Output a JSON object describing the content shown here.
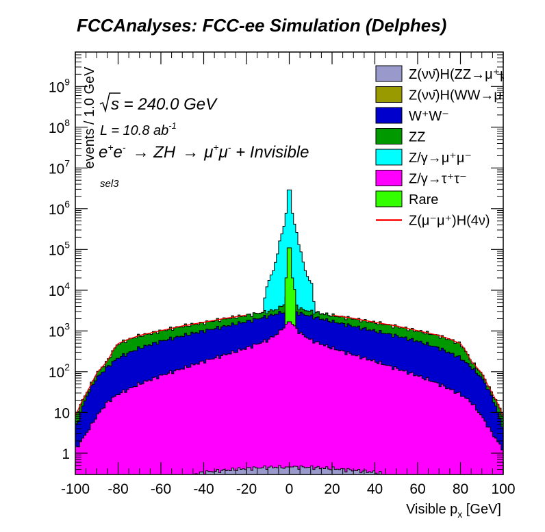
{
  "chart_data": {
    "type": "area",
    "title": "FCCAnalyses: FCC-ee Simulation (Delphes)",
    "xlabel_main": "Visible p",
    "xlabel_sub": "x",
    "xlabel_unit": " [GeV]",
    "ylabel": "events / 1.0 GeV",
    "xlim": [
      -100,
      100
    ],
    "ylim": [
      0.3,
      7000000000
    ],
    "y_scale": "log",
    "x_ticks": [
      "-100",
      "-80",
      "-60",
      "-40",
      "-20",
      "0",
      "20",
      "40",
      "60",
      "80",
      "100"
    ],
    "y_ticks": [
      {
        "value": 1,
        "base": "1",
        "exp": ""
      },
      {
        "value": 10,
        "base": "10",
        "exp": ""
      },
      {
        "value": 100,
        "base": "10",
        "exp": "2"
      },
      {
        "value": 1000,
        "base": "10",
        "exp": "3"
      },
      {
        "value": 10000,
        "base": "10",
        "exp": "4"
      },
      {
        "value": 100000,
        "base": "10",
        "exp": "5"
      },
      {
        "value": 1000000,
        "base": "10",
        "exp": "6"
      },
      {
        "value": 10000000,
        "base": "10",
        "exp": "7"
      },
      {
        "value": 100000000,
        "base": "10",
        "exp": "8"
      },
      {
        "value": 1000000000,
        "base": "10",
        "exp": "9"
      }
    ],
    "annotations": {
      "sqrt_s": {
        "sym": "s",
        "rest": " = 240.0 GeV"
      },
      "lumi": {
        "pre": "L = 10.8 ab",
        "exp": "-1"
      },
      "process": {
        "e1": "e",
        "e1s": "+",
        "e2": "e",
        "e2s": "-",
        "a1": "→ ZH",
        "a2": "→",
        "m1": "μ",
        "m1s": "+",
        "m2": "μ",
        "m2s": "-",
        "tail": " + Invisible"
      },
      "selection": "sel3"
    },
    "legend": {
      "placement": "top-right",
      "entries": [
        {
          "label": "Z(νν̄)H(ZZ→μ⁺μ⁻ν⁺ν",
          "color": "#9999cc",
          "kind": "fill"
        },
        {
          "label": "Z(νν̄)H(WW→μ⁺νμ",
          "color": "#999900",
          "kind": "fill"
        },
        {
          "label": "W⁺W⁻",
          "color": "#0000cc",
          "kind": "fill"
        },
        {
          "label": "ZZ",
          "color": "#009900",
          "kind": "fill"
        },
        {
          "label": "Z/γ→μ⁺μ⁻",
          "color": "#00ffff",
          "kind": "fill"
        },
        {
          "label": "Z/γ→τ⁺τ⁻",
          "color": "#ff00ff",
          "kind": "fill"
        },
        {
          "label": "Rare",
          "color": "#33ff00",
          "kind": "fill"
        },
        {
          "label": "Z(μ⁻μ⁺)H(4ν)",
          "color": "#ff0000",
          "kind": "line"
        }
      ]
    },
    "bin_width": 1,
    "series": [
      {
        "key": "tautau",
        "color": "#ff00ff",
        "points": [
          [
            -100,
            1.2
          ],
          [
            -95,
            3
          ],
          [
            -90,
            8
          ],
          [
            -85,
            18
          ],
          [
            -80,
            28
          ],
          [
            -70,
            50
          ],
          [
            -60,
            80
          ],
          [
            -50,
            120
          ],
          [
            -40,
            180
          ],
          [
            -30,
            260
          ],
          [
            -20,
            380
          ],
          [
            -10,
            600
          ],
          [
            -5,
            900
          ],
          [
            0,
            1800
          ],
          [
            5,
            900
          ],
          [
            10,
            600
          ],
          [
            20,
            380
          ],
          [
            30,
            260
          ],
          [
            40,
            180
          ],
          [
            50,
            120
          ],
          [
            60,
            80
          ],
          [
            70,
            50
          ],
          [
            80,
            28
          ],
          [
            85,
            18
          ],
          [
            90,
            8
          ],
          [
            95,
            3
          ],
          [
            100,
            1.2
          ]
        ]
      },
      {
        "key": "ww",
        "color": "#0000cc",
        "points": [
          [
            -100,
            4
          ],
          [
            -97,
            12
          ],
          [
            -94,
            30
          ],
          [
            -90,
            70
          ],
          [
            -85,
            130
          ],
          [
            -80,
            220
          ],
          [
            -70,
            380
          ],
          [
            -60,
            560
          ],
          [
            -50,
            760
          ],
          [
            -40,
            1000
          ],
          [
            -30,
            1300
          ],
          [
            -20,
            1700
          ],
          [
            -10,
            2300
          ],
          [
            -3,
            2900
          ],
          [
            0,
            3300
          ],
          [
            3,
            2900
          ],
          [
            10,
            2300
          ],
          [
            20,
            1700
          ],
          [
            30,
            1300
          ],
          [
            40,
            1000
          ],
          [
            50,
            760
          ],
          [
            60,
            560
          ],
          [
            70,
            380
          ],
          [
            80,
            220
          ],
          [
            85,
            130
          ],
          [
            90,
            70
          ],
          [
            94,
            30
          ],
          [
            97,
            12
          ],
          [
            100,
            4
          ]
        ]
      },
      {
        "key": "zz",
        "color": "#009900",
        "points": [
          [
            -100,
            8
          ],
          [
            -97,
            18
          ],
          [
            -94,
            35
          ],
          [
            -90,
            90
          ],
          [
            -85,
            180
          ],
          [
            -82,
            350
          ],
          [
            -80,
            480
          ],
          [
            -75,
            620
          ],
          [
            -70,
            760
          ],
          [
            -60,
            1000
          ],
          [
            -50,
            1300
          ],
          [
            -40,
            1600
          ],
          [
            -30,
            2000
          ],
          [
            -20,
            2400
          ],
          [
            -10,
            3000
          ],
          [
            -5,
            3500
          ],
          [
            -2,
            5000
          ],
          [
            -1,
            9000
          ],
          [
            0,
            20000
          ],
          [
            1,
            9000
          ],
          [
            2,
            5000
          ],
          [
            5,
            3500
          ],
          [
            10,
            3000
          ],
          [
            20,
            2400
          ],
          [
            30,
            2000
          ],
          [
            40,
            1600
          ],
          [
            50,
            1300
          ],
          [
            60,
            1000
          ],
          [
            70,
            760
          ],
          [
            75,
            620
          ],
          [
            80,
            480
          ],
          [
            82,
            350
          ],
          [
            85,
            180
          ],
          [
            90,
            90
          ],
          [
            94,
            35
          ],
          [
            97,
            18
          ],
          [
            100,
            8
          ]
        ]
      },
      {
        "key": "mumu",
        "color": "#00ffff",
        "points": [
          [
            -100,
            8
          ],
          [
            -97,
            18
          ],
          [
            -94,
            35
          ],
          [
            -90,
            90
          ],
          [
            -85,
            180
          ],
          [
            -82,
            350
          ],
          [
            -80,
            480
          ],
          [
            -75,
            620
          ],
          [
            -70,
            760
          ],
          [
            -60,
            1000
          ],
          [
            -50,
            1300
          ],
          [
            -40,
            1600
          ],
          [
            -30,
            2000
          ],
          [
            -20,
            2400
          ],
          [
            -12,
            2900
          ],
          [
            -11,
            12000
          ],
          [
            -8,
            25000
          ],
          [
            -6,
            60000
          ],
          [
            -4,
            200000
          ],
          [
            -2,
            500000
          ],
          [
            -1,
            1200000
          ],
          [
            0,
            7000000
          ],
          [
            1,
            1200000
          ],
          [
            2,
            500000
          ],
          [
            4,
            200000
          ],
          [
            6,
            60000
          ],
          [
            8,
            25000
          ],
          [
            11,
            12000
          ],
          [
            12,
            2900
          ],
          [
            20,
            2400
          ],
          [
            30,
            2000
          ],
          [
            40,
            1600
          ],
          [
            50,
            1300
          ],
          [
            60,
            1000
          ],
          [
            70,
            760
          ],
          [
            75,
            620
          ],
          [
            80,
            480
          ],
          [
            82,
            350
          ],
          [
            85,
            180
          ],
          [
            90,
            90
          ],
          [
            94,
            35
          ],
          [
            97,
            18
          ],
          [
            100,
            8
          ]
        ]
      },
      {
        "key": "rare",
        "color": "#33ff00",
        "points": [
          [
            -2,
            10000
          ],
          [
            -1,
            40000
          ],
          [
            0,
            300000
          ],
          [
            1,
            40000
          ],
          [
            2,
            10000
          ]
        ]
      },
      {
        "key": "zzh",
        "color": "#9999cc",
        "points": [
          [
            -45,
            0.3
          ],
          [
            -40,
            0.34
          ],
          [
            -30,
            0.38
          ],
          [
            -20,
            0.42
          ],
          [
            -10,
            0.45
          ],
          [
            0,
            0.46
          ],
          [
            10,
            0.45
          ],
          [
            20,
            0.42
          ],
          [
            30,
            0.38
          ],
          [
            40,
            0.34
          ],
          [
            45,
            0.3
          ]
        ]
      }
    ]
  }
}
